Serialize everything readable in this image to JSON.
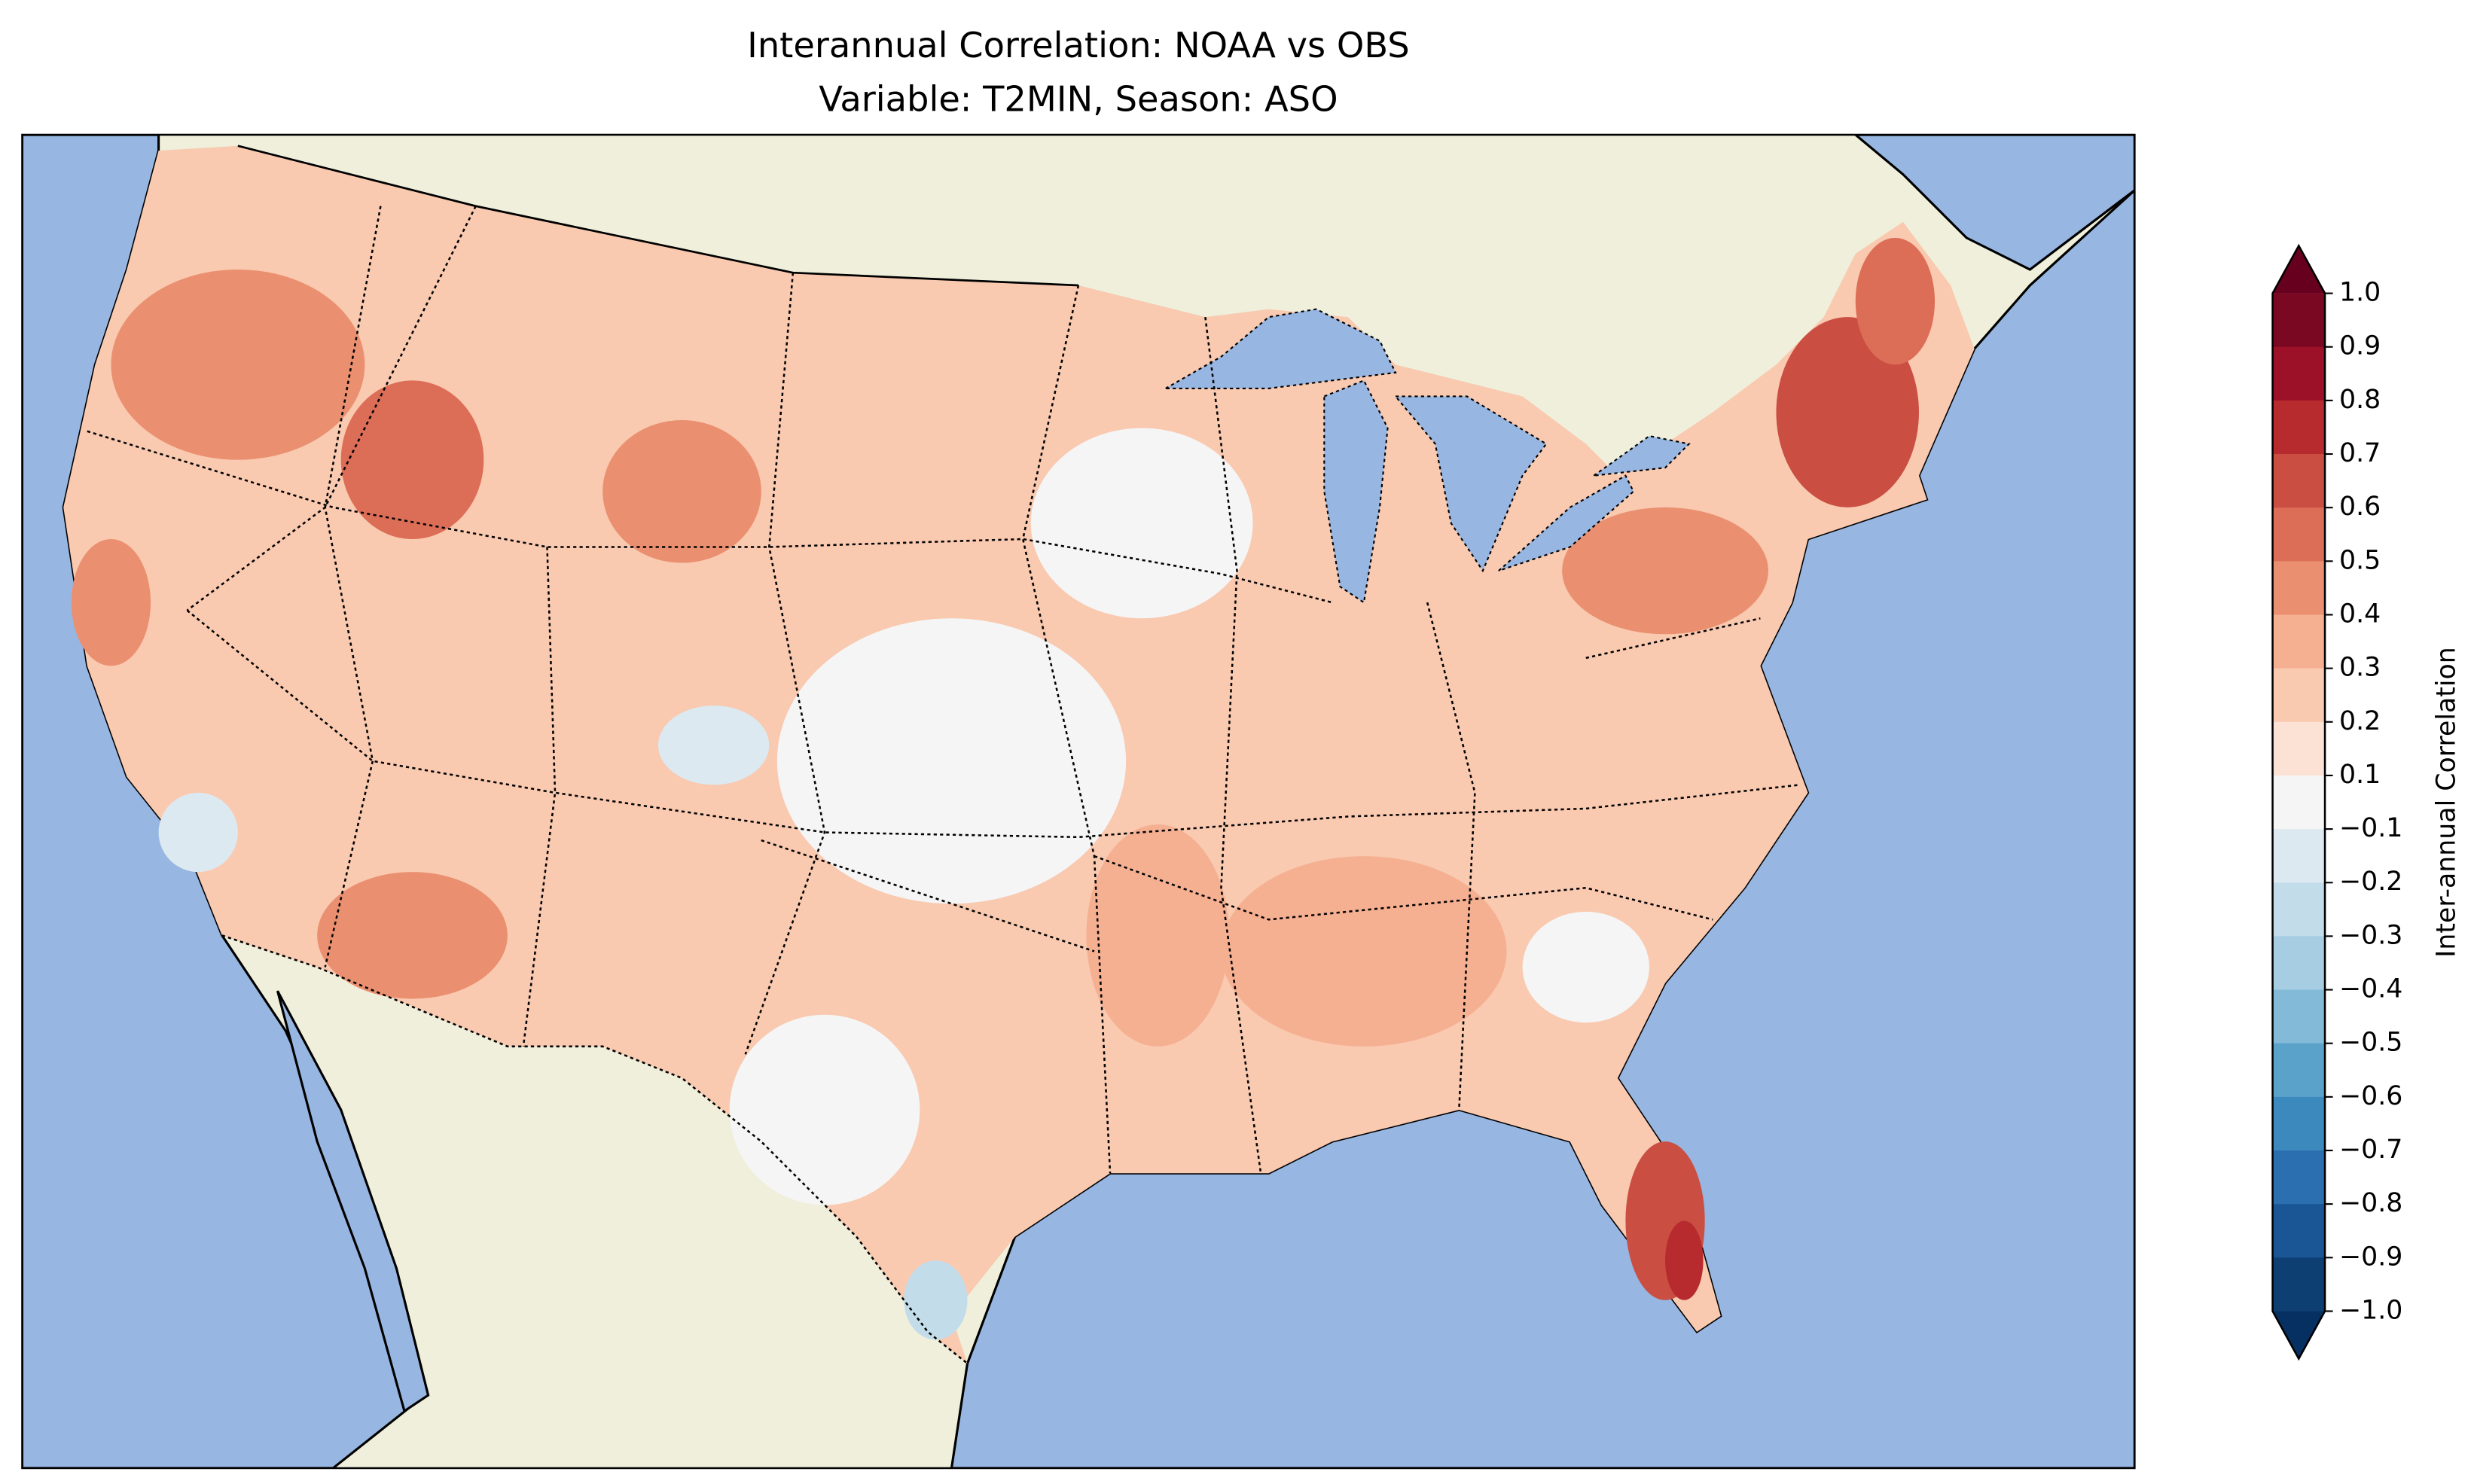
{
  "title": {
    "line1": "Interannual Correlation: NOAA vs OBS",
    "line2": "Variable: T2MIN, Season: ASO"
  },
  "colors": {
    "ocean": "#97b6e1",
    "land": "#efefdb",
    "lakes": "#97b6e1"
  },
  "chart_data": {
    "type": "heatmap",
    "title": "Interannual Correlation: NOAA vs OBS / Variable: T2MIN, Season: ASO",
    "region": "Contiguous United States",
    "colorbar": {
      "label": "Inter-annual Correlation",
      "range": [
        -1.0,
        1.0
      ],
      "extend": "both",
      "tick_labels": [
        "1.0",
        "0.9",
        "0.8",
        "0.7",
        "0.6",
        "0.5",
        "0.4",
        "0.3",
        "0.2",
        "0.1",
        "−0.1",
        "−0.2",
        "−0.3",
        "−0.4",
        "−0.5",
        "−0.6",
        "−0.7",
        "−0.8",
        "−0.9",
        "−1.0"
      ],
      "level_colors": [
        "#67001f",
        "#7a0822",
        "#9c1127",
        "#b72b2f",
        "#ca4e42",
        "#dc6e57",
        "#ea9070",
        "#f5b092",
        "#f9c9b0",
        "#fbe2d4",
        "#f5f5f5",
        "#dde9f1",
        "#c2dcea",
        "#a6cde2",
        "#83bad8",
        "#5ba2cb",
        "#3c89be",
        "#2b6fb0",
        "#1a5696",
        "#0d3f73",
        "#073062"
      ]
    },
    "regional_summary": [
      {
        "region": "New England / Northeast",
        "approx_correlation": 0.6
      },
      {
        "region": "Florida peninsula",
        "approx_correlation": 0.7
      },
      {
        "region": "Pacific Northwest",
        "approx_correlation": 0.5
      },
      {
        "region": "Southeast / Mississippi valley",
        "approx_correlation": 0.35
      },
      {
        "region": "Great Plains",
        "approx_correlation": 0.05
      },
      {
        "region": "Southern California coast",
        "approx_correlation": -0.15
      },
      {
        "region": "South Texas",
        "approx_correlation": -0.2
      }
    ]
  }
}
